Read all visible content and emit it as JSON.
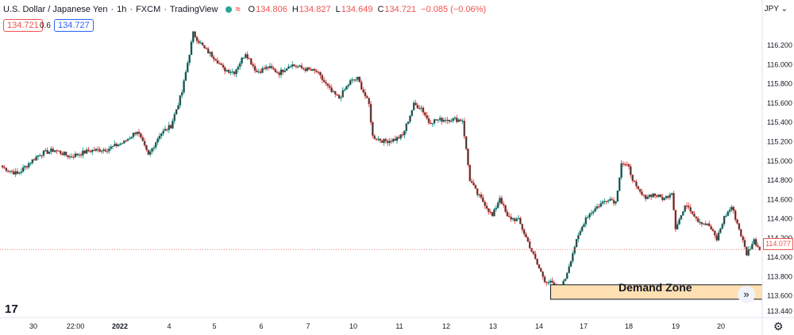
{
  "header": {
    "symbol": "U.S. Dollar / Japanese Yen",
    "interval": "1h",
    "exchange": "FXCM",
    "source": "TradingView",
    "separator": "·",
    "wave_icon": "≈",
    "open_label": "O",
    "open": "134.806",
    "high_label": "H",
    "high": "134.827",
    "low_label": "L",
    "low": "134.649",
    "close_label": "C",
    "close": "134.721",
    "change": "−0.085 (−0.06%)"
  },
  "trade": {
    "sell": "134.721",
    "spread": "0.6",
    "buy": "134.727"
  },
  "currency": "JPY ⌄",
  "current_price": "114.077",
  "demand_zone_label": "Demand Zone",
  "scroll_icon": "»",
  "logo": "17",
  "settings_icon": "⚙",
  "colors": {
    "up": "#26a69a",
    "down": "#ef5350",
    "candle_body": "#3a3a3a",
    "zone_fill": "#ffe0b2",
    "zone_border": "#131722"
  },
  "chart_data": {
    "type": "candlestick",
    "y_ticks": [
      "116.200",
      "116.000",
      "115.800",
      "115.600",
      "115.400",
      "115.200",
      "115.000",
      "114.800",
      "114.600",
      "114.400",
      "114.200",
      "114.000",
      "113.800",
      "113.600",
      "113.440"
    ],
    "x_ticks": [
      "30",
      "22:00",
      "2022",
      "4",
      "5",
      "6",
      "7",
      "10",
      "11",
      "12",
      "13",
      "14",
      "17",
      "18",
      "19",
      "20"
    ],
    "ylim": [
      113.37,
      116.42
    ],
    "demand_zone": {
      "low": 113.56,
      "high": 113.71,
      "start_candle": 294
    },
    "anchors": [
      [
        0,
        114.93
      ],
      [
        8,
        114.86
      ],
      [
        14,
        114.97
      ],
      [
        20,
        115.07
      ],
      [
        28,
        115.11
      ],
      [
        36,
        115.04
      ],
      [
        46,
        115.1
      ],
      [
        56,
        115.12
      ],
      [
        65,
        115.19
      ],
      [
        72,
        115.31
      ],
      [
        78,
        115.05
      ],
      [
        84,
        115.27
      ],
      [
        90,
        115.36
      ],
      [
        96,
        115.71
      ],
      [
        102,
        116.32
      ],
      [
        108,
        116.16
      ],
      [
        114,
        116.06
      ],
      [
        118,
        115.95
      ],
      [
        124,
        115.92
      ],
      [
        130,
        116.12
      ],
      [
        136,
        115.92
      ],
      [
        142,
        115.97
      ],
      [
        148,
        115.91
      ],
      [
        154,
        116.0
      ],
      [
        160,
        115.96
      ],
      [
        168,
        115.92
      ],
      [
        176,
        115.71
      ],
      [
        180,
        115.65
      ],
      [
        186,
        115.82
      ],
      [
        190,
        115.85
      ],
      [
        196,
        115.58
      ],
      [
        198,
        115.25
      ],
      [
        204,
        115.2
      ],
      [
        210,
        115.22
      ],
      [
        214,
        115.26
      ],
      [
        220,
        115.58
      ],
      [
        224,
        115.55
      ],
      [
        228,
        115.4
      ],
      [
        232,
        115.42
      ],
      [
        240,
        115.43
      ],
      [
        246,
        115.42
      ],
      [
        250,
        114.8
      ],
      [
        254,
        114.65
      ],
      [
        258,
        114.55
      ],
      [
        262,
        114.42
      ],
      [
        266,
        114.62
      ],
      [
        270,
        114.41
      ],
      [
        276,
        114.38
      ],
      [
        282,
        114.11
      ],
      [
        286,
        113.92
      ],
      [
        290,
        113.76
      ],
      [
        294,
        113.72
      ],
      [
        297,
        113.58
      ],
      [
        301,
        113.78
      ],
      [
        306,
        114.11
      ],
      [
        312,
        114.41
      ],
      [
        318,
        114.52
      ],
      [
        324,
        114.61
      ],
      [
        328,
        114.57
      ],
      [
        331,
        114.98
      ],
      [
        335,
        114.92
      ],
      [
        339,
        114.71
      ],
      [
        343,
        114.62
      ],
      [
        348,
        114.65
      ],
      [
        354,
        114.6
      ],
      [
        358,
        114.68
      ],
      [
        360,
        114.31
      ],
      [
        366,
        114.55
      ],
      [
        372,
        114.38
      ],
      [
        378,
        114.32
      ],
      [
        382,
        114.18
      ],
      [
        386,
        114.41
      ],
      [
        390,
        114.52
      ],
      [
        394,
        114.29
      ],
      [
        398,
        114.03
      ],
      [
        402,
        114.17
      ],
      [
        405,
        114.08
      ]
    ],
    "n_candles": 406
  }
}
